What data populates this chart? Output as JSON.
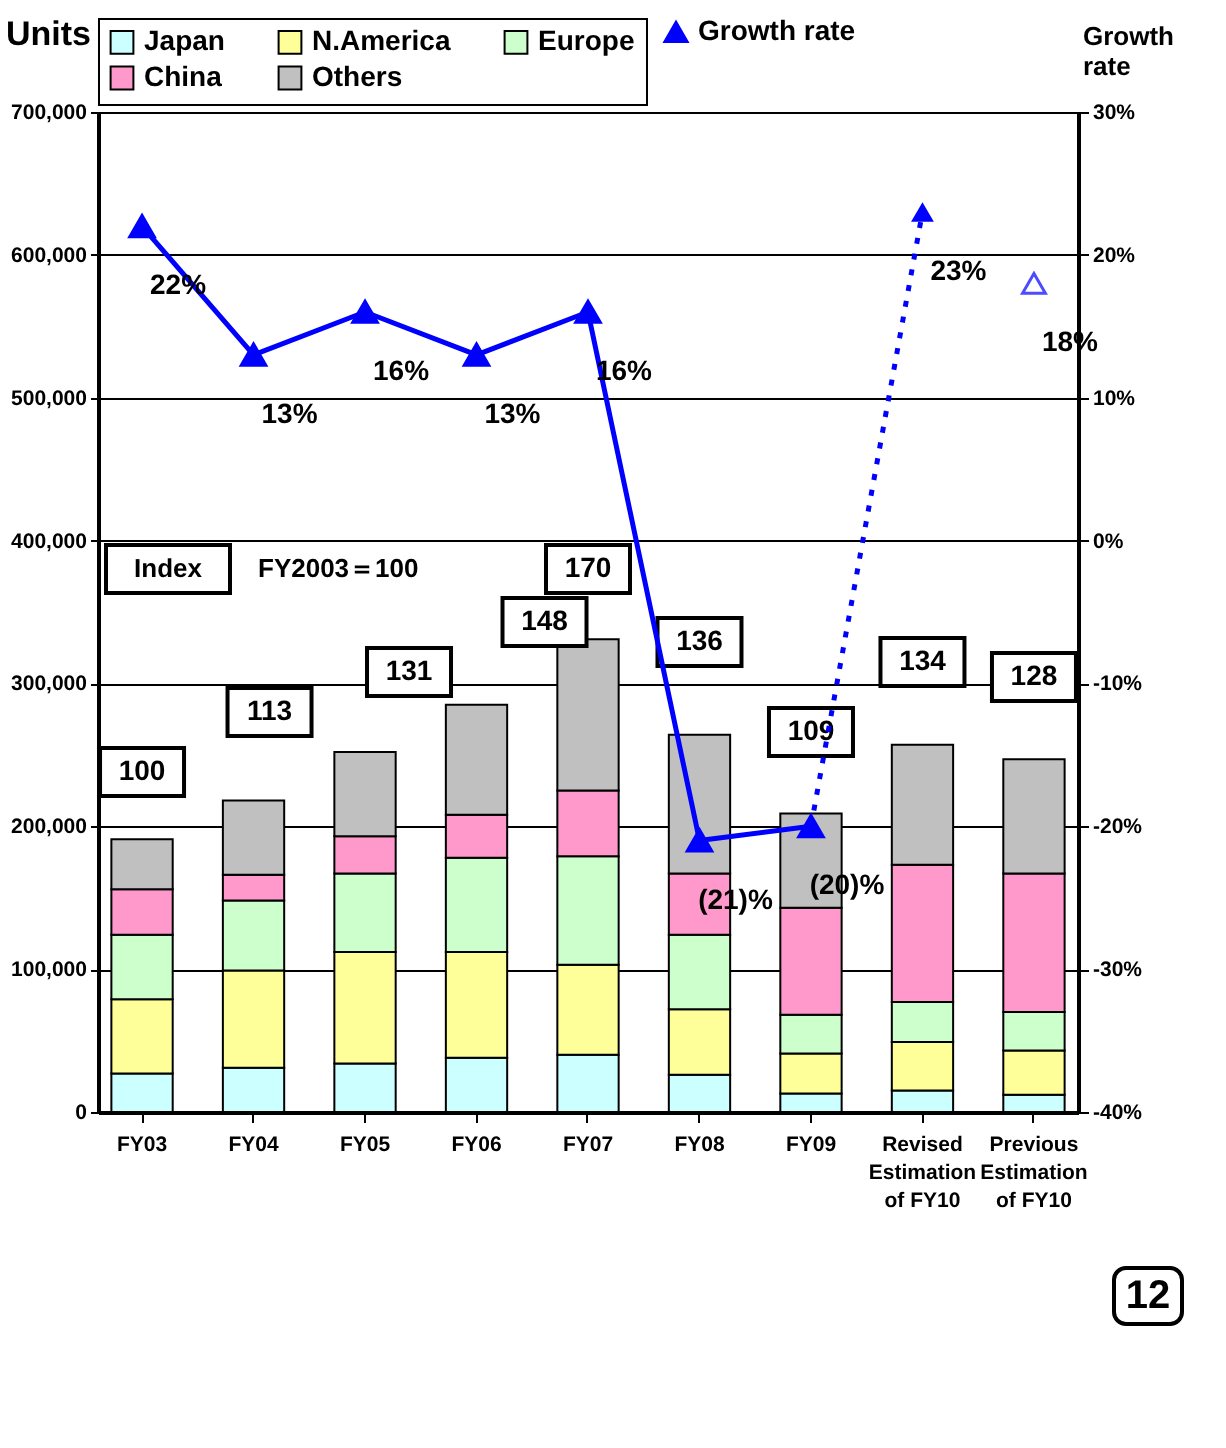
{
  "chart_data": {
    "type": "bar",
    "stacked": true,
    "categories": [
      "FY03",
      "FY04",
      "FY05",
      "FY06",
      "FY07",
      "FY08",
      "FY09",
      "Revised Estimation of FY10",
      "Previous Estimation of FY10"
    ],
    "series": [
      {
        "name": "Japan",
        "color": "#ccffff",
        "values": [
          27000,
          31000,
          34000,
          38000,
          40000,
          26000,
          13000,
          15000,
          12000
        ]
      },
      {
        "name": "N.America",
        "color": "#ffff99",
        "values": [
          52000,
          68000,
          78000,
          74000,
          63000,
          46000,
          28000,
          34000,
          31000
        ]
      },
      {
        "name": "Europe",
        "color": "#ccffcc",
        "values": [
          45000,
          49000,
          55000,
          66000,
          76000,
          52000,
          27000,
          28000,
          27000
        ]
      },
      {
        "name": "China",
        "color": "#ff99cc",
        "values": [
          32000,
          18000,
          26000,
          30000,
          46000,
          43000,
          75000,
          96000,
          97000
        ]
      },
      {
        "name": "Others",
        "color": "#c0c0c0",
        "values": [
          35000,
          52000,
          59000,
          77000,
          106000,
          97000,
          66000,
          84000,
          80000
        ]
      },
      {
        "name": "Growth rate",
        "type": "line",
        "axis": "y2",
        "color": "#0000ff",
        "marker": "triangle",
        "values": [
          22,
          13,
          16,
          13,
          16,
          -21,
          -20,
          null,
          null
        ],
        "value_labels": [
          "22%",
          "13%",
          "16%",
          "13%",
          "16%",
          "(21)%",
          "(20)%",
          null,
          null
        ]
      },
      {
        "type": "line",
        "axis": "y2",
        "color": "#0000ff",
        "marker": "triangle",
        "line_style": "dotted",
        "values": [
          null,
          null,
          null,
          null,
          null,
          null,
          -20,
          23,
          null
        ],
        "value_labels": [
          null,
          null,
          null,
          null,
          null,
          null,
          null,
          "23%",
          null
        ]
      },
      {
        "type": "scatter",
        "axis": "y2",
        "color": "#0000ff",
        "marker": "triangle",
        "values": [
          null,
          null,
          null,
          null,
          null,
          null,
          null,
          null,
          18
        ],
        "value_labels": [
          null,
          null,
          null,
          null,
          null,
          null,
          null,
          null,
          "18%"
        ]
      }
    ],
    "ylabel": "Units",
    "y2label": "Growth rate",
    "ylim": [
      0,
      700000
    ],
    "yticks": [
      {
        "value": 0,
        "label": "0"
      },
      {
        "value": 100000,
        "label": "100,000"
      },
      {
        "value": 200000,
        "label": "200,000"
      },
      {
        "value": 300000,
        "label": "300,000"
      },
      {
        "value": 400000,
        "label": "400,000"
      },
      {
        "value": 500000,
        "label": "500,000"
      },
      {
        "value": 600000,
        "label": "600,000"
      },
      {
        "value": 700000,
        "label": "700,000"
      }
    ],
    "y2lim": [
      -40,
      30
    ],
    "y2ticks": [
      {
        "value": -40,
        "label": "-40%"
      },
      {
        "value": -30,
        "label": "-30%"
      },
      {
        "value": -20,
        "label": "-20%"
      },
      {
        "value": -10,
        "label": "-10%"
      },
      {
        "value": 0,
        "label": "0%"
      },
      {
        "value": 10,
        "label": "10%"
      },
      {
        "value": 20,
        "label": "20%"
      },
      {
        "value": 30,
        "label": "30%"
      }
    ],
    "grid": "y",
    "legend": "top",
    "annotations": [
      "100",
      "113",
      "131",
      "148",
      "170",
      "136",
      "109",
      "134",
      "128",
      "Index",
      "FY2003＝100",
      "12"
    ]
  }
}
